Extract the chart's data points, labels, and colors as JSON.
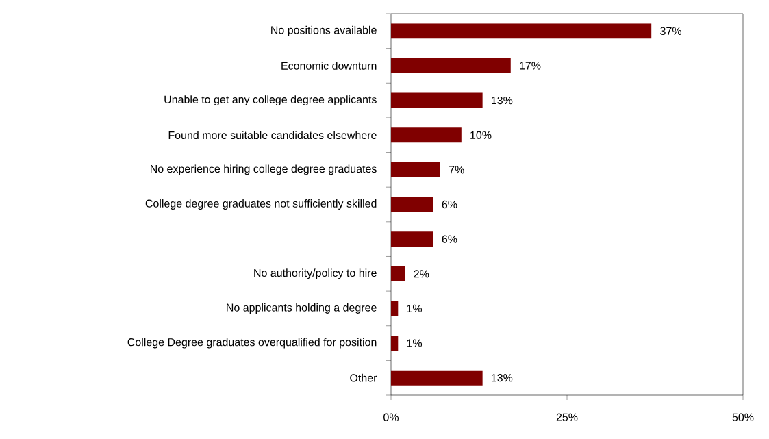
{
  "chart_data": {
    "type": "bar",
    "orientation": "horizontal",
    "categories": [
      "No positions available",
      "Economic downturn",
      "Unable to get any college degree applicants",
      "Found more suitable candidates elsewhere",
      "No experience hiring college degree graduates",
      "College degree graduates not sufficiently skilled",
      null,
      "No authority/policy to hire",
      "No applicants holding a degree",
      "College Degree graduates overqualified for position",
      "Other"
    ],
    "values": [
      37,
      17,
      13,
      10,
      7,
      6,
      6,
      2,
      1,
      1,
      13
    ],
    "value_labels": [
      "37%",
      "17%",
      "13%",
      "10%",
      "7%",
      "6%",
      "6%",
      "2%",
      "1%",
      "1%",
      "13%"
    ],
    "color": "#800000",
    "xlim": [
      0,
      50
    ],
    "xticks": [
      {
        "value": 0,
        "label": "0%"
      },
      {
        "value": 25,
        "label": "25%"
      },
      {
        "value": 50,
        "label": "50%"
      }
    ],
    "data_labels": true
  }
}
